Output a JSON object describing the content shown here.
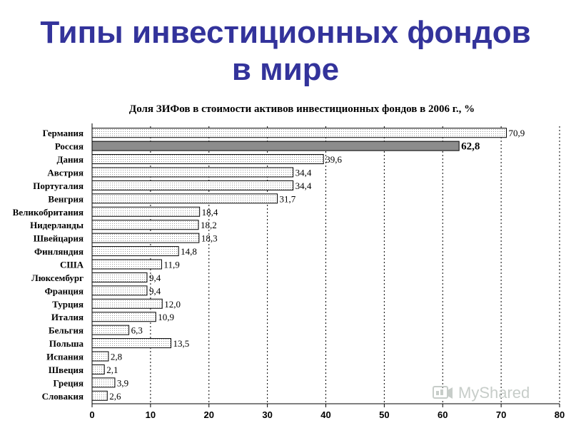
{
  "slide": {
    "title_line1": "Типы инвестиционных фондов",
    "title_line2": "в мире"
  },
  "watermark": {
    "text": "MyShared"
  },
  "colors": {
    "title": "#33339b",
    "bar_fill": "#ffffff",
    "bar_dots": "#9a9a9a",
    "highlight_fill": "#8c8c8c",
    "bar_stroke": "#000000"
  },
  "chart_data": {
    "type": "bar",
    "orientation": "horizontal",
    "title": "Доля ЗИФов в стоимости активов инвестиционных фондов в 2006 г., %",
    "categories": [
      "Германия",
      "Россия",
      "Дания",
      "Австрия",
      "Португалия",
      "Венгрия",
      "Великобритания",
      "Нидерланды",
      "Швейцария",
      "Финляндия",
      "США",
      "Люксембург",
      "Франция",
      "Турция",
      "Италия",
      "Бельгия",
      "Польша",
      "Испания",
      "Швеция",
      "Греция",
      "Словакия"
    ],
    "values": [
      70.9,
      62.8,
      39.6,
      34.4,
      34.4,
      31.7,
      18.4,
      18.2,
      18.3,
      14.8,
      11.9,
      9.4,
      9.4,
      12.0,
      10.9,
      6.3,
      13.5,
      2.8,
      2.1,
      3.9,
      2.6
    ],
    "value_labels": [
      "70,9",
      "62,8",
      "39,6",
      "34,4",
      "34,4",
      "31,7",
      "18,4",
      "18,2",
      "18,3",
      "14,8",
      "11,9",
      "9,4",
      "9,4",
      "12,0",
      "10,9",
      "6,3",
      "13,5",
      "2,8",
      "2,1",
      "3,9",
      "2,6"
    ],
    "highlight_category": "Россия",
    "xlim": [
      0,
      80
    ],
    "xticks": [
      0,
      10,
      20,
      30,
      40,
      50,
      60,
      70,
      80
    ],
    "grid": "vertical dotted",
    "xlabel": "",
    "ylabel": ""
  }
}
